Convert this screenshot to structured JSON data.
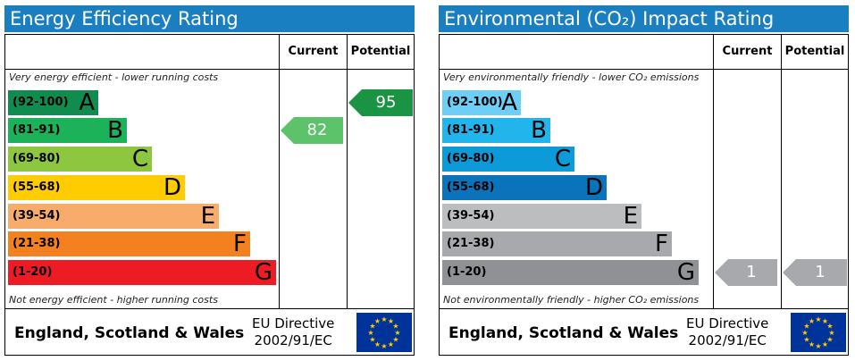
{
  "chart_data": [
    {
      "type": "bar",
      "title": "Energy Efficiency Rating",
      "columns": [
        "Current",
        "Potential"
      ],
      "top_note": "Very energy efficient - lower running costs",
      "bottom_note": "Not energy efficient - higher running costs",
      "bands": [
        {
          "range": "(92-100)",
          "letter": "A",
          "min": 92,
          "max": 100,
          "color": "#118c4f"
        },
        {
          "range": "(81-91)",
          "letter": "B",
          "min": 81,
          "max": 91,
          "color": "#1bb25a"
        },
        {
          "range": "(69-80)",
          "letter": "C",
          "min": 69,
          "max": 80,
          "color": "#8dc63f"
        },
        {
          "range": "(55-68)",
          "letter": "D",
          "min": 55,
          "max": 68,
          "color": "#ffcc00"
        },
        {
          "range": "(39-54)",
          "letter": "E",
          "min": 39,
          "max": 54,
          "color": "#f7ac6b"
        },
        {
          "range": "(21-38)",
          "letter": "F",
          "min": 21,
          "max": 38,
          "color": "#f48120"
        },
        {
          "range": "(1-20)",
          "letter": "G",
          "min": 1,
          "max": 20,
          "color": "#ed1c24"
        }
      ],
      "current": {
        "value": 82,
        "label": "82",
        "color": "#5cc36b"
      },
      "potential": {
        "value": 95,
        "label": "95",
        "color": "#1a9442"
      },
      "footer_country": "England, Scotland & Wales",
      "footer_eu_line1": "EU Directive",
      "footer_eu_line2": "2002/91/EC"
    },
    {
      "type": "bar",
      "title": "Environmental (CO₂) Impact Rating",
      "columns": [
        "Current",
        "Potential"
      ],
      "top_note": "Very environmentally friendly - lower CO₂ emissions",
      "bottom_note": "Not environmentally friendly - higher CO₂ emissions",
      "bands": [
        {
          "range": "(92-100)",
          "letter": "A",
          "min": 92,
          "max": 100,
          "color": "#6dcff6"
        },
        {
          "range": "(81-91)",
          "letter": "B",
          "min": 81,
          "max": 91,
          "color": "#22b5ec"
        },
        {
          "range": "(69-80)",
          "letter": "C",
          "min": 69,
          "max": 80,
          "color": "#0d9ad9"
        },
        {
          "range": "(55-68)",
          "letter": "D",
          "min": 55,
          "max": 68,
          "color": "#0a73bb"
        },
        {
          "range": "(39-54)",
          "letter": "E",
          "min": 39,
          "max": 54,
          "color": "#bbbdbf"
        },
        {
          "range": "(21-38)",
          "letter": "F",
          "min": 21,
          "max": 38,
          "color": "#a7a9ac"
        },
        {
          "range": "(1-20)",
          "letter": "G",
          "min": 1,
          "max": 20,
          "color": "#8f9194"
        }
      ],
      "current": {
        "value": 1,
        "label": "1",
        "color": "#a7a9ac"
      },
      "potential": {
        "value": 1,
        "label": "1",
        "color": "#a7a9ac"
      },
      "footer_country": "England, Scotland & Wales",
      "footer_eu_line1": "EU Directive",
      "footer_eu_line2": "2002/91/EC"
    }
  ]
}
